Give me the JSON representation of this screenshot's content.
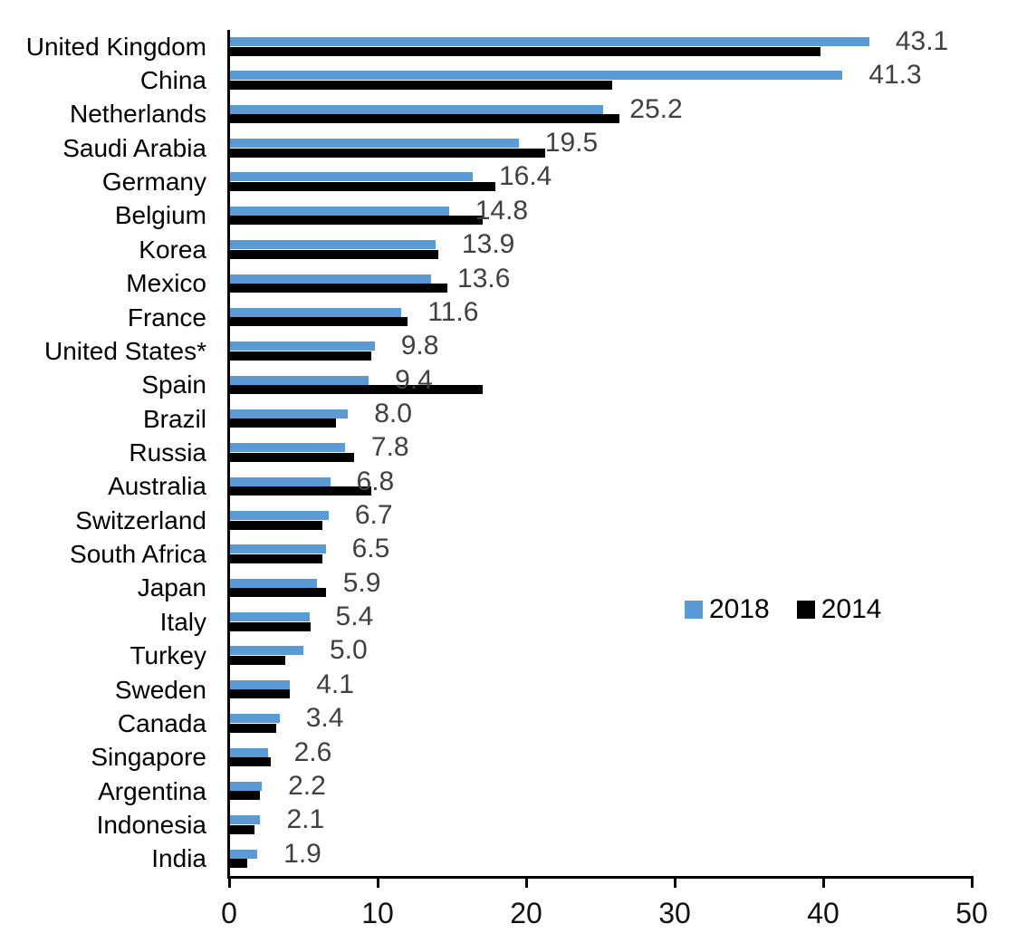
{
  "chart_data": {
    "type": "bar",
    "orientation": "horizontal",
    "title": "",
    "xlabel": "",
    "ylabel": "",
    "xlim": [
      0,
      50
    ],
    "x_ticks": [
      "0",
      "10",
      "20",
      "30",
      "40",
      "50"
    ],
    "grid": false,
    "legend_position": "middle-right",
    "categories": [
      "United Kingdom",
      "China",
      "Netherlands",
      "Saudi Arabia",
      "Germany",
      "Belgium",
      "Korea",
      "Mexico",
      "France",
      "United States*",
      "Spain",
      "Brazil",
      "Russia",
      "Australia",
      "Switzerland",
      "South Africa",
      "Japan",
      "Italy",
      "Turkey",
      "Sweden",
      "Canada",
      "Singapore",
      "Argentina",
      "Indonesia",
      "India"
    ],
    "series": [
      {
        "name": "2018",
        "color": "#5B9BD5",
        "values": [
          43.1,
          41.3,
          25.2,
          19.5,
          16.4,
          14.8,
          13.9,
          13.6,
          11.6,
          9.8,
          9.4,
          8.0,
          7.8,
          6.8,
          6.7,
          6.5,
          5.9,
          5.4,
          5.0,
          4.1,
          3.4,
          2.6,
          2.2,
          2.1,
          1.9
        ]
      },
      {
        "name": "2014",
        "color": "#000000",
        "values": [
          39.8,
          25.8,
          26.3,
          21.3,
          17.9,
          17.1,
          14.1,
          14.7,
          12.0,
          9.6,
          17.1,
          7.2,
          8.4,
          9.6,
          6.3,
          6.3,
          6.5,
          5.5,
          3.8,
          4.1,
          3.2,
          2.8,
          2.1,
          1.7,
          1.2
        ]
      }
    ],
    "value_labels_2018": [
      "43.1",
      "41.3",
      "25.2",
      "19.5",
      "16.4",
      "14.8",
      "13.9",
      "13.6",
      "11.6",
      "9.8",
      "9.4",
      "8.0",
      "7.8",
      "6.8",
      "6.7",
      "6.5",
      "5.9",
      "5.4",
      "5.0",
      "4.1",
      "3.4",
      "2.6",
      "2.2",
      "2.1",
      "1.9"
    ],
    "value_label_color": "#404040"
  }
}
